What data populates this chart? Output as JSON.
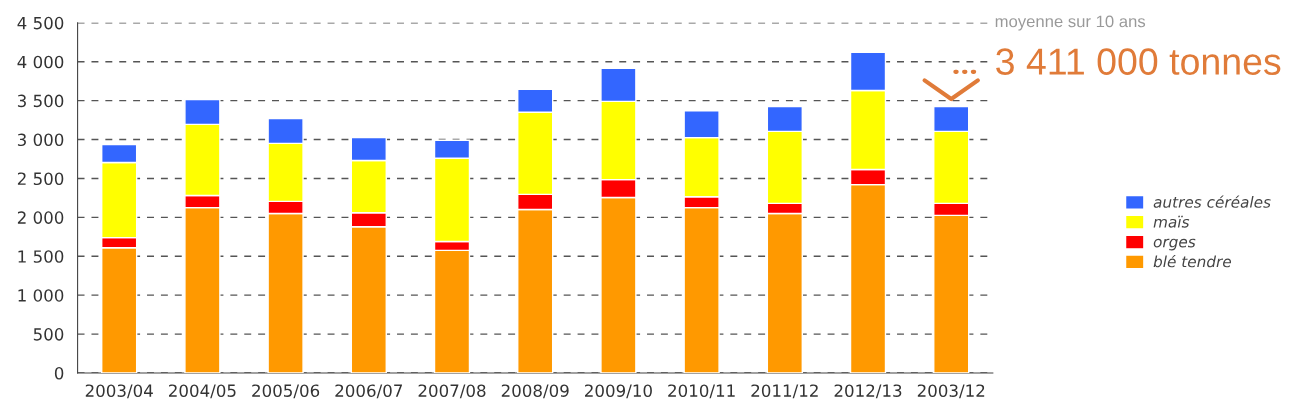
{
  "chart_data": {
    "type": "bar",
    "stacked": true,
    "categories": [
      "2003/04",
      "2004/05",
      "2005/06",
      "2006/07",
      "2007/08",
      "2008/09",
      "2009/10",
      "2010/11",
      "2011/12",
      "2012/13",
      "2003/12"
    ],
    "series": [
      {
        "name": "blé tendre",
        "color": "#ff9900",
        "values": [
          1610,
          2125,
          2050,
          1880,
          1575,
          2100,
          2255,
          2125,
          2050,
          2420,
          2025
        ]
      },
      {
        "name": "orges",
        "color": "#ff0000",
        "values": [
          130,
          155,
          155,
          180,
          115,
          195,
          230,
          140,
          130,
          195,
          155
        ]
      },
      {
        "name": "maïs",
        "color": "#ffff00",
        "values": [
          965,
          915,
          745,
          670,
          1070,
          1055,
          1005,
          760,
          925,
          1015,
          925
        ]
      },
      {
        "name": "autres céréales",
        "color": "#3366ff",
        "values": [
          230,
          320,
          320,
          295,
          230,
          295,
          425,
          345,
          320,
          490,
          320
        ]
      }
    ],
    "ylim": [
      0,
      4500
    ],
    "yticks": [
      0,
      500,
      {
        "value": 1000,
        "label": "1 000"
      },
      {
        "value": 1500,
        "label": "1 500"
      },
      {
        "value": 2000,
        "label": "2 000"
      },
      {
        "value": 2500,
        "label": "2 500"
      },
      {
        "value": 3000,
        "label": "3 000"
      },
      {
        "value": 3500,
        "label": "3 500"
      },
      {
        "value": 4000,
        "label": "4 000"
      },
      {
        "value": 4500,
        "label": "4 500"
      }
    ],
    "grid": "y",
    "legend": "right",
    "annotations": [
      "moyenne sur 10 ans",
      "3 411 000 tonnes"
    ]
  }
}
